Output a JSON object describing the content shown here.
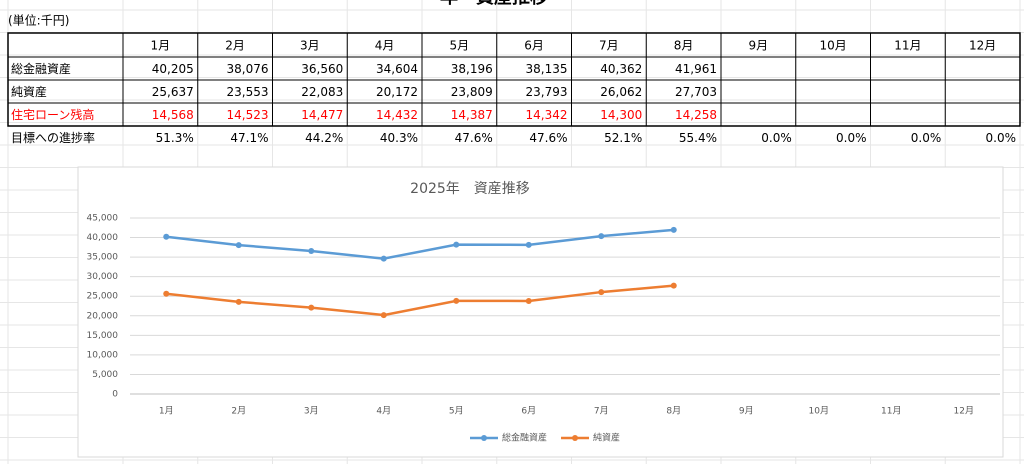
{
  "sheet_title": "年　資産推移",
  "unit": "(単位:千円)",
  "table": {
    "columns": [
      "1月",
      "2月",
      "3月",
      "4月",
      "5月",
      "6月",
      "7月",
      "8月",
      "9月",
      "10月",
      "11月",
      "12月"
    ],
    "rows": [
      {
        "label": "総金融資産",
        "values": [
          "40,205",
          "38,076",
          "36,560",
          "34,604",
          "38,196",
          "38,135",
          "40,362",
          "41,961"
        ]
      },
      {
        "label": "純資産",
        "values": [
          "25,637",
          "23,553",
          "22,083",
          "20,172",
          "23,809",
          "23,793",
          "26,062",
          "27,703"
        ]
      },
      {
        "label": "住宅ローン残高",
        "color": "#ff0000",
        "values": [
          "14,568",
          "14,523",
          "14,477",
          "14,432",
          "14,387",
          "14,342",
          "14,300",
          "14,258"
        ]
      }
    ],
    "footer": {
      "label": "目標への進捗率",
      "values": [
        "51.3%",
        "47.1%",
        "44.2%",
        "40.3%",
        "47.6%",
        "47.6%",
        "52.1%",
        "55.4%",
        "0.0%",
        "0.0%",
        "0.0%",
        "0.0%"
      ]
    }
  },
  "chart_data": {
    "type": "line",
    "title": "2025年　資産推移",
    "categories": [
      "1月",
      "2月",
      "3月",
      "4月",
      "5月",
      "6月",
      "7月",
      "8月",
      "9月",
      "10月",
      "11月",
      "12月"
    ],
    "series": [
      {
        "name": "総金融資産",
        "color": "#5b9bd5",
        "values": [
          40205,
          38076,
          36560,
          34604,
          38196,
          38135,
          40362,
          41961,
          null,
          null,
          null,
          null
        ]
      },
      {
        "name": "純資産",
        "color": "#ed7d31",
        "values": [
          25637,
          23553,
          22083,
          20172,
          23809,
          23793,
          26062,
          27703,
          null,
          null,
          null,
          null
        ]
      }
    ],
    "ylim": [
      0,
      45000
    ],
    "yticks": [
      0,
      {
        "value": 5000,
        "label": "5,000"
      },
      {
        "value": 10000,
        "label": "10,000"
      },
      {
        "value": 15000,
        "label": "15,000"
      },
      {
        "value": 20000,
        "label": "20,000"
      },
      {
        "value": 25000,
        "label": "25,000"
      },
      {
        "value": 30000,
        "label": "30,000"
      },
      {
        "value": 35000,
        "label": "35,000"
      },
      {
        "value": 40000,
        "label": "40,000"
      },
      {
        "value": 45000,
        "label": "45,000"
      }
    ],
    "grid": true,
    "legend": "bottom"
  }
}
